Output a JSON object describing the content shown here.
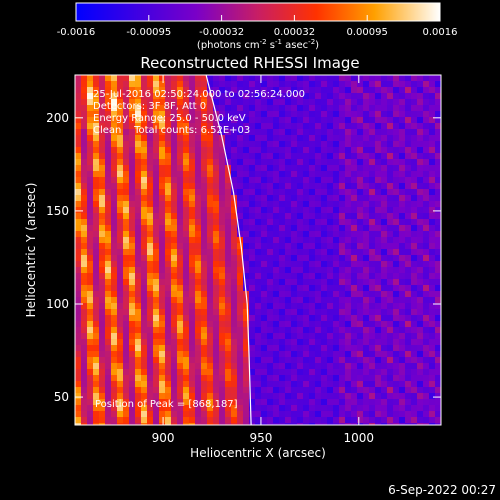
{
  "chart_data": {
    "type": "heatmap",
    "title": "Reconstructed RHESSI Image",
    "xlabel": "Heliocentric X (arcsec)",
    "ylabel": "Heliocentric Y (arcsec)",
    "xlim": [
      855,
      1042
    ],
    "ylim": [
      35,
      223
    ],
    "x_ticks": [
      900,
      950,
      1000
    ],
    "y_ticks": [
      50,
      100,
      150,
      200
    ],
    "colorbar": {
      "ticks": [
        "-0.0016",
        "-0.00095",
        "-0.00032",
        "0.00032",
        "0.00095",
        "0.0016"
      ],
      "range": [
        -0.0016,
        0.0016
      ],
      "unit_label": {
        "part1": "(photons cm",
        "sup1": "-2",
        "part2": " s",
        "sup2": "-1",
        "part3": " asec",
        "sup3": "-2",
        "part4": ")"
      }
    },
    "annotations": [
      "25-Jul-2016 02:50:24.000 to 02:56:24.000",
      "Detectors: 3F 8F, Att 0",
      "Energy Range: 25.0 - 50.0 keV",
      "Clean    Total counts: 6.52E+03"
    ],
    "peak_label": "Position of Peak = [868,187]",
    "peak_position": [
      868,
      187
    ],
    "limb_curve": [
      [
        922,
        223
      ],
      [
        930,
        190
      ],
      [
        936,
        160
      ],
      [
        940,
        130
      ],
      [
        943,
        100
      ],
      [
        944,
        70
      ],
      [
        945,
        35
      ]
    ]
  },
  "footer": {
    "date": "6-Sep-2022 00:27"
  }
}
